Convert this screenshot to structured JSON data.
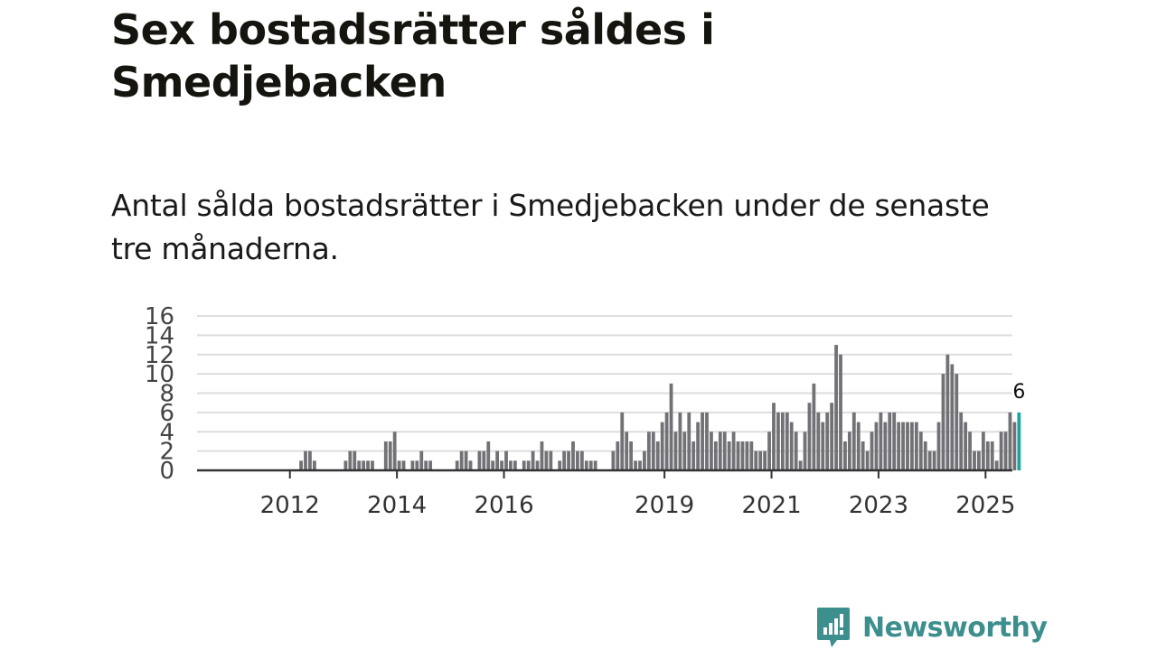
{
  "header": {
    "title": "Sex bostadsrätter såldes i Smedjebacken",
    "subtitle": "Antal sålda bostadsrätter i Smedjebacken under de senaste tre månaderna."
  },
  "brand": {
    "name": "Newsworthy",
    "icon": "newsworthy-logo-icon",
    "color": "#3d8f8e"
  },
  "colors": {
    "bar": "#727176",
    "highlight": "#1aa5a0",
    "grid": "#dddddd",
    "axis": "#333333"
  },
  "chart_data": {
    "type": "bar",
    "title": "Sex bostadsrätter såldes i Smedjebacken",
    "xlabel": "",
    "ylabel": "",
    "ylim": [
      0,
      16
    ],
    "y_ticks": [
      "0",
      "2",
      "4",
      "6",
      "8",
      "10",
      "12",
      "14",
      "16"
    ],
    "x_start": "2011-01",
    "x_ticks": [
      {
        "label": "2012",
        "month_index": 12
      },
      {
        "label": "2014",
        "month_index": 36
      },
      {
        "label": "2016",
        "month_index": 60
      },
      {
        "label": "2019",
        "month_index": 96
      },
      {
        "label": "2021",
        "month_index": 120
      },
      {
        "label": "2023",
        "month_index": 144
      },
      {
        "label": "2025",
        "month_index": 168
      }
    ],
    "values": [
      0,
      0,
      0,
      0,
      0,
      0,
      0,
      0,
      0,
      0,
      0,
      0,
      0,
      0,
      1,
      2,
      2,
      1,
      0,
      0,
      0,
      0,
      0,
      0,
      1,
      2,
      2,
      1,
      1,
      1,
      1,
      0,
      0,
      3,
      3,
      4,
      1,
      1,
      0,
      1,
      1,
      2,
      1,
      1,
      0,
      0,
      0,
      0,
      0,
      1,
      2,
      2,
      1,
      0,
      2,
      2,
      3,
      1,
      2,
      1,
      2,
      1,
      1,
      0,
      1,
      1,
      2,
      1,
      3,
      2,
      2,
      0,
      1,
      2,
      2,
      3,
      2,
      2,
      1,
      1,
      1,
      0,
      0,
      0,
      2,
      3,
      6,
      4,
      3,
      1,
      1,
      2,
      4,
      4,
      3,
      5,
      6,
      9,
      4,
      6,
      4,
      6,
      3,
      5,
      6,
      6,
      4,
      3,
      4,
      4,
      3,
      4,
      3,
      3,
      3,
      3,
      2,
      2,
      2,
      4,
      7,
      6,
      6,
      6,
      5,
      4,
      1,
      4,
      7,
      9,
      6,
      5,
      6,
      7,
      13,
      12,
      3,
      4,
      6,
      5,
      3,
      2,
      4,
      5,
      6,
      5,
      6,
      6,
      5,
      5,
      5,
      5,
      5,
      4,
      3,
      2,
      2,
      5,
      10,
      12,
      11,
      10,
      6,
      5,
      4,
      2,
      2,
      4,
      3,
      3,
      1,
      4,
      4,
      6,
      5,
      6
    ],
    "highlight_index": 175,
    "highlight_label": "6"
  }
}
